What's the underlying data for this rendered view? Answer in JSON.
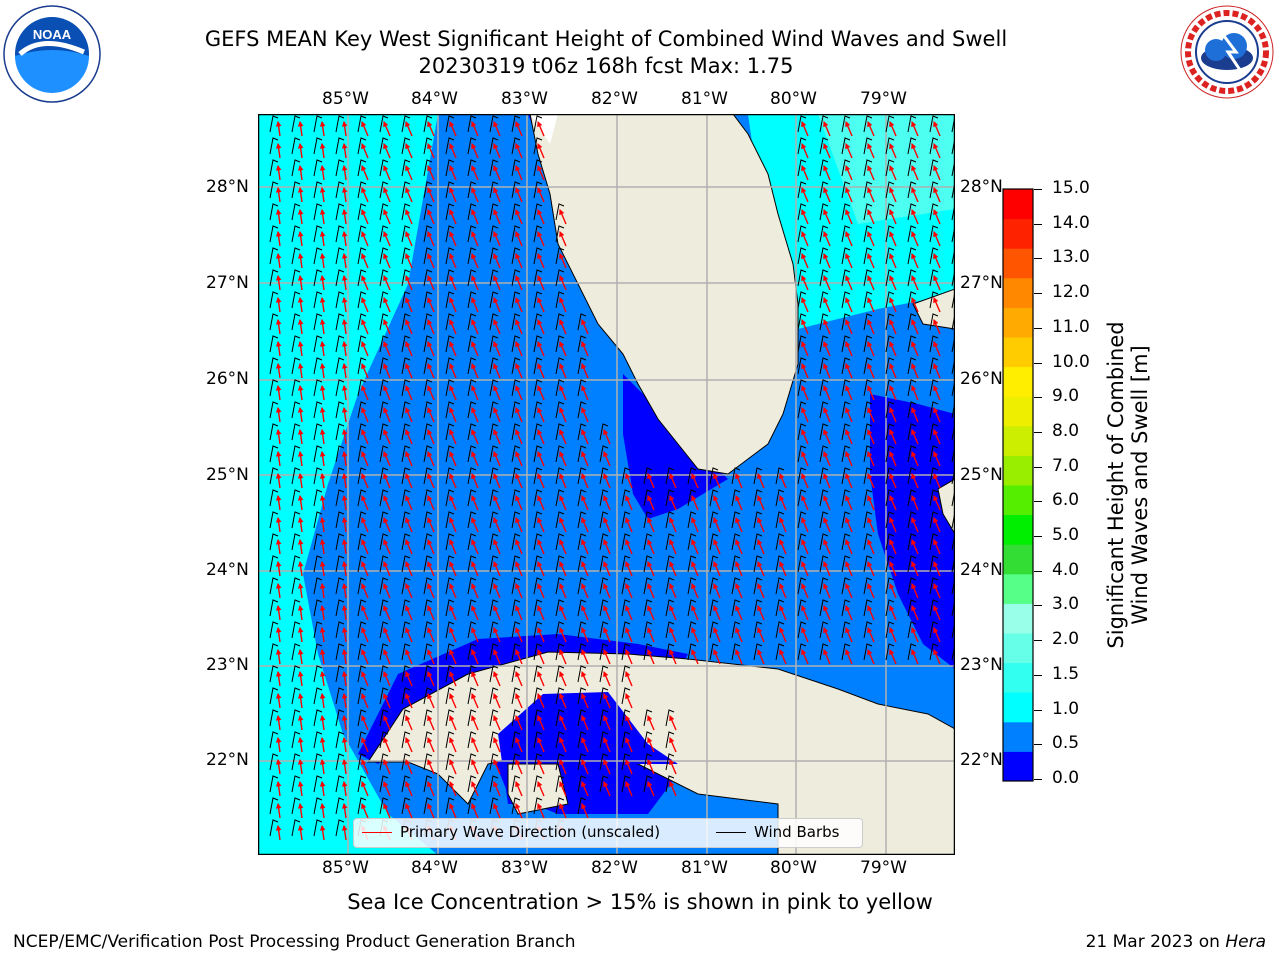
{
  "title": {
    "line1": "GEFS MEAN Key West Significant Height of Combined Wind Waves and Swell",
    "line2": "20230319 t06z 168h fcst   Max: 1.75"
  },
  "map": {
    "lon_labels": [
      "85°W",
      "84°W",
      "83°W",
      "82°W",
      "81°W",
      "80°W",
      "79°W"
    ],
    "lat_labels": [
      "28°N",
      "27°N",
      "26°N",
      "25°N",
      "24°N",
      "23°N",
      "22°N"
    ],
    "land_color": "#eeecdc",
    "gridline_color": "#b0b0b0"
  },
  "colorbar": {
    "label_line1": "Significant Height of Combined",
    "label_line2": "Wind Waves and Swell [m]",
    "ticks": [
      "15.0",
      "14.0",
      "13.0",
      "12.0",
      "11.0",
      "10.0",
      "9.0",
      "8.0",
      "7.0",
      "6.0",
      "5.0",
      "4.0",
      "3.0",
      "2.0",
      "1.5",
      "1.0",
      "0.5",
      "0.0"
    ],
    "colors": [
      "#0000ff",
      "#0080ff",
      "#00ffff",
      "#33fff0",
      "#66ffe8",
      "#99ffe8",
      "#55ff88",
      "#33dd33",
      "#00ee00",
      "#55ee00",
      "#99ee00",
      "#ccee00",
      "#eeee00",
      "#ffee00",
      "#ffcc00",
      "#ffaa00",
      "#ff8800",
      "#ff5500",
      "#ff2200",
      "#ff0000"
    ]
  },
  "legend": {
    "wave_label": "Primary Wave Direction (unscaled)",
    "wave_color": "#ff0000",
    "barb_label": "Wind Barbs",
    "barb_color": "#000000"
  },
  "logos": {
    "noaa_text": "NOAA",
    "noaa_ring_text": "NATIONAL OCEANIC AND ATMOSPHERIC ADMINISTRATION · U.S. DEPARTMENT OF COMMERCE",
    "nws_ring_text": "NATIONAL WEATHER SERVICE"
  },
  "note": "Sea Ice Concentration > 15% is shown in pink to yellow",
  "footer": {
    "left": "NCEP/EMC/Verification Post Processing Product Generation Branch",
    "right_date": "21 Mar 2023 on ",
    "right_machine": "Hera"
  }
}
